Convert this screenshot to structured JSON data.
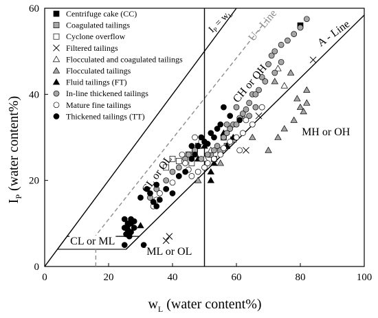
{
  "chart_data": {
    "type": "scatter",
    "title": "",
    "xlabel_main": "w",
    "xlabel_sub": "L",
    "xlabel_rest": " (water content%)",
    "ylabel_main": "I",
    "ylabel_sub": "P",
    "ylabel_rest": " (water content%)",
    "xlim": [
      0,
      100
    ],
    "ylim": [
      0,
      60
    ],
    "xticks": [
      0,
      20,
      40,
      60,
      80,
      100
    ],
    "yticks": [
      0,
      20,
      40,
      60
    ],
    "grid": false,
    "legend_position": "top-left",
    "lines": [
      {
        "name": "U - Line",
        "style": "dashed",
        "color": "#8c8c8c",
        "points": [
          [
            16,
            0
          ],
          [
            16,
            7.2
          ],
          [
            70,
            57.8
          ]
        ]
      },
      {
        "name": "A - Line",
        "style": "solid",
        "color": "#000000",
        "points": [
          [
            25.5,
            4
          ],
          [
            100,
            58.4
          ]
        ]
      },
      {
        "name": "I_P = w_L",
        "style": "solid",
        "color": "#000000",
        "points": [
          [
            0,
            0
          ],
          [
            60,
            60
          ]
        ]
      },
      {
        "name": "w_L = 50",
        "style": "solid",
        "color": "#000000",
        "points": [
          [
            50,
            0
          ],
          [
            50,
            60
          ]
        ]
      }
    ],
    "regions": [
      {
        "name": "CL-ML band",
        "points": [
          [
            4,
            4
          ],
          [
            25.5,
            4
          ],
          [
            29.6,
            7
          ],
          [
            7,
            7
          ]
        ]
      }
    ],
    "annotations": [
      {
        "text": "CL or ML",
        "x": 15,
        "y": 5.1
      },
      {
        "text": "ML or OL",
        "x": 39,
        "y": 2.7
      },
      {
        "text": "CL or OL",
        "x": 36,
        "y": 21,
        "rotate": -54
      },
      {
        "text": "CH or OH",
        "x": 65,
        "y": 42,
        "rotate": -50
      },
      {
        "text": "MH or OH",
        "x": 88,
        "y": 30.5
      },
      {
        "text": "U - Line",
        "x": 69,
        "y": 55.5,
        "rotate": -50,
        "color": "#8c8c8c"
      },
      {
        "text": "A - Line",
        "x": 91,
        "y": 53.5,
        "rotate": -36
      },
      {
        "text": "I",
        "sub": "P",
        "rest": " = w",
        "sub2": "L",
        "x": 55.5,
        "y": 56.5,
        "rotate": -45
      }
    ],
    "series": [
      {
        "name": "Centrifuge cake (CC)",
        "marker": "square",
        "fill": "#000000",
        "points": [
          [
            80,
            56
          ]
        ]
      },
      {
        "name": "Coagulated tailings",
        "marker": "square",
        "fill": "#a6a6a6",
        "points": [
          [
            55,
            27
          ],
          [
            57,
            28
          ],
          [
            53,
            25
          ],
          [
            56,
            30
          ],
          [
            59,
            29.5
          ],
          [
            52,
            26
          ]
        ]
      },
      {
        "name": "Cyclone overflow",
        "marker": "square",
        "fill": "#ffffff",
        "points": [
          [
            38,
            23
          ],
          [
            40,
            25
          ],
          [
            42,
            24.5
          ],
          [
            45,
            26
          ],
          [
            47,
            27
          ],
          [
            48,
            28
          ],
          [
            46,
            24
          ]
        ]
      },
      {
        "name": "Filtered tailings",
        "marker": "x",
        "fill": "#000000",
        "points": [
          [
            84,
            48
          ],
          [
            63,
            27
          ],
          [
            38,
            6
          ],
          [
            39,
            7
          ],
          [
            67,
            35
          ]
        ]
      },
      {
        "name": "Flocculated and coagulated tailings",
        "marker": "triangle",
        "fill": "#ffffff",
        "points": [
          [
            75,
            42
          ],
          [
            73,
            46
          ],
          [
            50,
            25
          ],
          [
            52,
            27
          ]
        ]
      },
      {
        "name": "Flocculated tailings",
        "marker": "triangle",
        "fill": "#a6a6a6",
        "points": [
          [
            70,
            27
          ],
          [
            73,
            30
          ],
          [
            75,
            32
          ],
          [
            78,
            34
          ],
          [
            80,
            37
          ],
          [
            82,
            38
          ],
          [
            79,
            39
          ],
          [
            81,
            36
          ],
          [
            82,
            41
          ],
          [
            77,
            45
          ],
          [
            72,
            43
          ],
          [
            62,
            35
          ],
          [
            65,
            30
          ],
          [
            55,
            24
          ],
          [
            48,
            20
          ]
        ]
      },
      {
        "name": "Fluid tailings (FT)",
        "marker": "triangle",
        "fill": "#000000",
        "points": [
          [
            30,
            9.5
          ],
          [
            52,
            20
          ],
          [
            52,
            22
          ],
          [
            53,
            24
          ],
          [
            48,
            25
          ],
          [
            56,
            31
          ],
          [
            57,
            28
          ],
          [
            59,
            30
          ],
          [
            50,
            28
          ]
        ]
      },
      {
        "name": "In-line thickened tailings",
        "marker": "circle",
        "fill": "#a6a6a6",
        "points": [
          [
            82,
            57.5
          ],
          [
            80,
            55.5
          ],
          [
            78,
            54
          ],
          [
            76,
            52.5
          ],
          [
            74,
            51.5
          ],
          [
            72,
            50
          ],
          [
            71,
            49
          ],
          [
            74,
            47.5
          ],
          [
            70,
            47
          ],
          [
            72,
            45
          ],
          [
            68,
            44
          ],
          [
            69,
            43
          ],
          [
            67,
            41
          ],
          [
            65,
            40
          ],
          [
            64,
            38
          ],
          [
            63,
            36.5
          ],
          [
            62,
            35.5
          ],
          [
            61,
            34.5
          ],
          [
            59,
            33
          ],
          [
            58,
            32
          ],
          [
            57,
            31
          ],
          [
            56,
            30
          ],
          [
            54,
            28
          ],
          [
            53,
            27
          ],
          [
            51,
            26
          ],
          [
            49,
            25
          ],
          [
            47,
            27
          ],
          [
            45,
            26
          ],
          [
            44,
            25
          ],
          [
            42,
            23
          ],
          [
            40,
            22
          ],
          [
            38,
            20
          ],
          [
            35,
            18
          ],
          [
            33,
            16
          ],
          [
            60,
            33
          ],
          [
            64,
            35
          ],
          [
            66,
            37
          ],
          [
            66,
            40
          ],
          [
            60,
            37
          ],
          [
            57,
            33
          ]
        ]
      },
      {
        "name": "Mature fine tailings",
        "marker": "circle",
        "fill": "#ffffff",
        "points": [
          [
            68,
            37
          ],
          [
            65,
            33
          ],
          [
            63,
            34
          ],
          [
            62,
            31
          ],
          [
            60,
            30
          ],
          [
            58,
            29
          ],
          [
            56,
            27.5
          ],
          [
            55,
            26
          ],
          [
            53,
            25
          ],
          [
            51,
            24
          ],
          [
            50,
            23
          ],
          [
            48,
            22
          ],
          [
            46,
            21
          ],
          [
            45,
            22.5
          ],
          [
            44,
            24
          ],
          [
            43,
            26
          ],
          [
            42,
            21
          ],
          [
            40,
            19.5
          ],
          [
            38,
            18
          ],
          [
            36,
            17
          ],
          [
            35,
            15.5
          ],
          [
            34,
            14
          ],
          [
            47,
            30
          ],
          [
            49,
            29
          ],
          [
            61,
            27
          ]
        ]
      },
      {
        "name": "Thickened tailings (TT)",
        "marker": "circle",
        "fill": "#000000",
        "points": [
          [
            25,
            11
          ],
          [
            26,
            10
          ],
          [
            27,
            11
          ],
          [
            28,
            10.5
          ],
          [
            25,
            9
          ],
          [
            26,
            8.5
          ],
          [
            27,
            8
          ],
          [
            25.5,
            7.5
          ],
          [
            26.5,
            7
          ],
          [
            25,
            5
          ],
          [
            31,
            5
          ],
          [
            30,
            16
          ],
          [
            32,
            18
          ],
          [
            33,
            17
          ],
          [
            35,
            19
          ],
          [
            34,
            15
          ],
          [
            36,
            15.5
          ],
          [
            35,
            14
          ],
          [
            38,
            18
          ],
          [
            40,
            17
          ],
          [
            42,
            21
          ],
          [
            44,
            22
          ],
          [
            46,
            25
          ],
          [
            47,
            26
          ],
          [
            48,
            28
          ],
          [
            49,
            30
          ],
          [
            50,
            29
          ],
          [
            52,
            31
          ],
          [
            53,
            30
          ],
          [
            55,
            33
          ],
          [
            56,
            37
          ],
          [
            54,
            32
          ],
          [
            51,
            28.5
          ],
          [
            46,
            28
          ],
          [
            58,
            35
          ],
          [
            61,
            34
          ],
          [
            26,
            9.5
          ],
          [
            27,
            10
          ],
          [
            28,
            9
          ]
        ]
      }
    ]
  }
}
